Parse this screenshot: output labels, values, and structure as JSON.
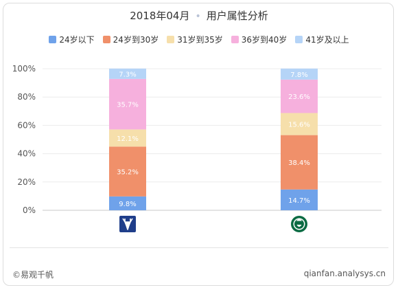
{
  "header": {
    "title_left": "2018年04月",
    "title_sep": "•",
    "title_right": "用户属性分析"
  },
  "chart_data": {
    "type": "bar",
    "stacked": true,
    "percent": true,
    "categories": [
      "deer-logo",
      "starbucks-logo"
    ],
    "series": [
      {
        "name": "24岁以下",
        "color": "#6fa2ea",
        "values": [
          9.8,
          14.7
        ]
      },
      {
        "name": "24岁到30岁",
        "color": "#f0906a",
        "values": [
          35.2,
          38.4
        ]
      },
      {
        "name": "31岁到35岁",
        "color": "#f6dfab",
        "values": [
          12.1,
          15.6
        ]
      },
      {
        "name": "36岁到40岁",
        "color": "#f6b0dd",
        "values": [
          35.7,
          23.6
        ]
      },
      {
        "name": "41岁及以上",
        "color": "#b5d4f7",
        "values": [
          7.3,
          7.8
        ]
      }
    ],
    "yticks": [
      "0%",
      "20%",
      "40%",
      "60%",
      "80%",
      "100%"
    ],
    "ylim": [
      0,
      100
    ],
    "grid": true,
    "legend": "top-center",
    "icons": [
      {
        "name": "deer-logo-icon",
        "color": "#1f3e8a"
      },
      {
        "name": "starbucks-logo-icon",
        "color": "#0b6b43"
      }
    ]
  },
  "footer": {
    "copyright": "©易观千帆",
    "url": "qianfan.analysys.cn"
  }
}
